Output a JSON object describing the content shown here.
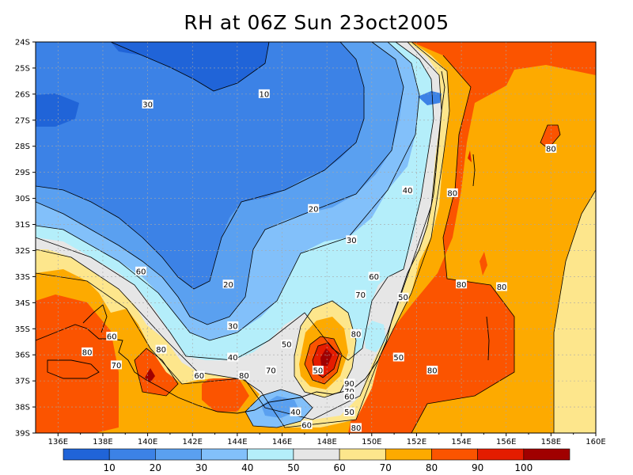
{
  "title": "RH at 06Z Sun 23oct2005",
  "lat_labels": [
    "24S",
    "25S",
    "26S",
    "27S",
    "28S",
    "29S",
    "30S",
    "31S",
    "32S",
    "33S",
    "34S",
    "35S",
    "36S",
    "37S",
    "38S",
    "39S"
  ],
  "lon_labels": [
    "136E",
    "138E",
    "140E",
    "142E",
    "144E",
    "146E",
    "148E",
    "150E",
    "152E",
    "154E",
    "156E",
    "158E",
    "160E"
  ],
  "colorbar": {
    "colors": [
      "#2064d8",
      "#3c82e6",
      "#5aa0f0",
      "#82c0fa",
      "#b4eefa",
      "#e6e6e6",
      "#fde68c",
      "#fdaa00",
      "#fb5400",
      "#e41c00",
      "#a00000"
    ],
    "labels": [
      "10",
      "20",
      "30",
      "40",
      "50",
      "60",
      "70",
      "80",
      "90",
      "100"
    ]
  },
  "contour_labels": [
    {
      "text": "10",
      "lon": 145.2,
      "lat": -26.0
    },
    {
      "text": "30",
      "lon": 140.0,
      "lat": -26.4
    },
    {
      "text": "20",
      "lon": 147.4,
      "lat": -30.4
    },
    {
      "text": "40",
      "lon": 151.6,
      "lat": -29.7
    },
    {
      "text": "30",
      "lon": 149.1,
      "lat": -31.6
    },
    {
      "text": "80",
      "lon": 153.6,
      "lat": -29.8
    },
    {
      "text": "80",
      "lon": 158.0,
      "lat": -28.1
    },
    {
      "text": "60",
      "lon": 139.7,
      "lat": -32.8
    },
    {
      "text": "20",
      "lon": 143.6,
      "lat": -33.3
    },
    {
      "text": "60",
      "lon": 150.1,
      "lat": -33.0
    },
    {
      "text": "80",
      "lon": 154.0,
      "lat": -33.3
    },
    {
      "text": "80",
      "lon": 155.8,
      "lat": -33.4
    },
    {
      "text": "70",
      "lon": 149.5,
      "lat": -33.7
    },
    {
      "text": "50",
      "lon": 151.4,
      "lat": -33.8
    },
    {
      "text": "30",
      "lon": 143.8,
      "lat": -34.9
    },
    {
      "text": "60",
      "lon": 138.4,
      "lat": -35.3
    },
    {
      "text": "80",
      "lon": 149.3,
      "lat": -35.2
    },
    {
      "text": "50",
      "lon": 146.2,
      "lat": -35.6
    },
    {
      "text": "80",
      "lon": 137.3,
      "lat": -35.9
    },
    {
      "text": "80",
      "lon": 140.6,
      "lat": -35.8
    },
    {
      "text": "40",
      "lon": 143.8,
      "lat": -36.1
    },
    {
      "text": "70",
      "lon": 138.6,
      "lat": -36.4
    },
    {
      "text": "50",
      "lon": 151.2,
      "lat": -36.1
    },
    {
      "text": "70",
      "lon": 145.5,
      "lat": -36.6
    },
    {
      "text": "50",
      "lon": 147.6,
      "lat": -36.6
    },
    {
      "text": "60",
      "lon": 142.3,
      "lat": -36.8
    },
    {
      "text": "80",
      "lon": 144.3,
      "lat": -36.8
    },
    {
      "text": "80",
      "lon": 152.7,
      "lat": -36.6
    },
    {
      "text": "90",
      "lon": 149.0,
      "lat": -37.1
    },
    {
      "text": "70",
      "lon": 149.0,
      "lat": -37.4
    },
    {
      "text": "60",
      "lon": 149.0,
      "lat": -37.6
    },
    {
      "text": "40",
      "lon": 146.6,
      "lat": -38.2
    },
    {
      "text": "50",
      "lon": 149.0,
      "lat": -38.2
    },
    {
      "text": "60",
      "lon": 147.1,
      "lat": -38.7
    },
    {
      "text": "80",
      "lon": 149.3,
      "lat": -38.8
    }
  ]
}
